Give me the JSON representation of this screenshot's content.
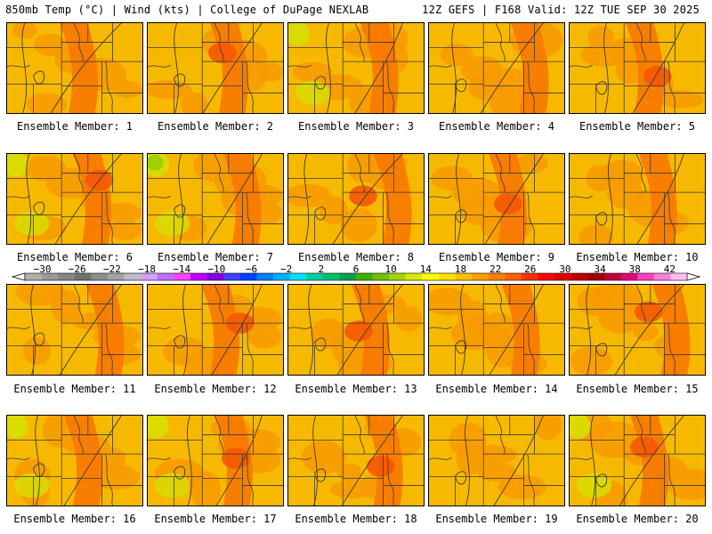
{
  "header": {
    "left": "850mb Temp (°C) | Wind (kts) | College of DuPage NEXLAB",
    "right": "12Z GEFS | F168 Valid: 12Z TUE SEP 30 2025"
  },
  "caption_prefix": "Ensemble Member: ",
  "members": [
    {
      "label": "Ensemble Member: 1",
      "hot": 1,
      "cool": 0
    },
    {
      "label": "Ensemble Member: 2",
      "hot": 2,
      "cool": 0
    },
    {
      "label": "Ensemble Member: 3",
      "hot": 1,
      "cool": 1
    },
    {
      "label": "Ensemble Member: 4",
      "hot": 1,
      "cool": 0
    },
    {
      "label": "Ensemble Member: 5",
      "hot": 2,
      "cool": 0
    },
    {
      "label": "Ensemble Member: 6",
      "hot": 2,
      "cool": 1
    },
    {
      "label": "Ensemble Member: 7",
      "hot": 1,
      "cool": 2
    },
    {
      "label": "Ensemble Member: 8",
      "hot": 2,
      "cool": 0
    },
    {
      "label": "Ensemble Member: 9",
      "hot": 2,
      "cool": 0
    },
    {
      "label": "Ensemble Member: 10",
      "hot": 1,
      "cool": 0
    },
    {
      "label": "Ensemble Member: 11",
      "hot": 1,
      "cool": 0
    },
    {
      "label": "Ensemble Member: 12",
      "hot": 2,
      "cool": 0
    },
    {
      "label": "Ensemble Member: 13",
      "hot": 2,
      "cool": 0
    },
    {
      "label": "Ensemble Member: 14",
      "hot": 1,
      "cool": 0
    },
    {
      "label": "Ensemble Member: 15",
      "hot": 2,
      "cool": 0
    },
    {
      "label": "Ensemble Member: 16",
      "hot": 1,
      "cool": 1
    },
    {
      "label": "Ensemble Member: 17",
      "hot": 2,
      "cool": 1
    },
    {
      "label": "Ensemble Member: 18",
      "hot": 2,
      "cool": 0
    },
    {
      "label": "Ensemble Member: 19",
      "hot": 0,
      "cool": 0
    },
    {
      "label": "Ensemble Member: 20",
      "hot": 2,
      "cool": 1
    }
  ],
  "colorbar": {
    "min": -32,
    "max": 44,
    "step": 2,
    "tick_labels": [
      -30,
      -26,
      -22,
      -18,
      -14,
      -10,
      -6,
      -2,
      2,
      6,
      10,
      14,
      18,
      22,
      26,
      30,
      34,
      38,
      42
    ],
    "colors": [
      "#b0b0b0",
      "#9a9a9a",
      "#868686",
      "#727272",
      "#8c8c8c",
      "#a4a4a4",
      "#bcbcc8",
      "#d2a0ff",
      "#c070ff",
      "#ff40ff",
      "#c000ff",
      "#8000e0",
      "#4040ff",
      "#0040ff",
      "#0080ff",
      "#00b0ff",
      "#00e0ff",
      "#00d0a0",
      "#00c070",
      "#00a050",
      "#40b000",
      "#70c000",
      "#a8d400",
      "#d8e800",
      "#ffff00",
      "#ffe000",
      "#ffc000",
      "#ffa000",
      "#ff8000",
      "#ff6000",
      "#ff3000",
      "#ff0000",
      "#e00000",
      "#c00000",
      "#a00000",
      "#c00040",
      "#e00080",
      "#ff40c0",
      "#ff80e0",
      "#ffc0f0"
    ]
  },
  "palette": {
    "base": "#f7b900",
    "warm": "#f89a00",
    "hot": "#f77800",
    "hotter": "#f45800",
    "cool": "#d8dc00",
    "cooler": "#9ed000",
    "line": "#3a3a3a"
  }
}
